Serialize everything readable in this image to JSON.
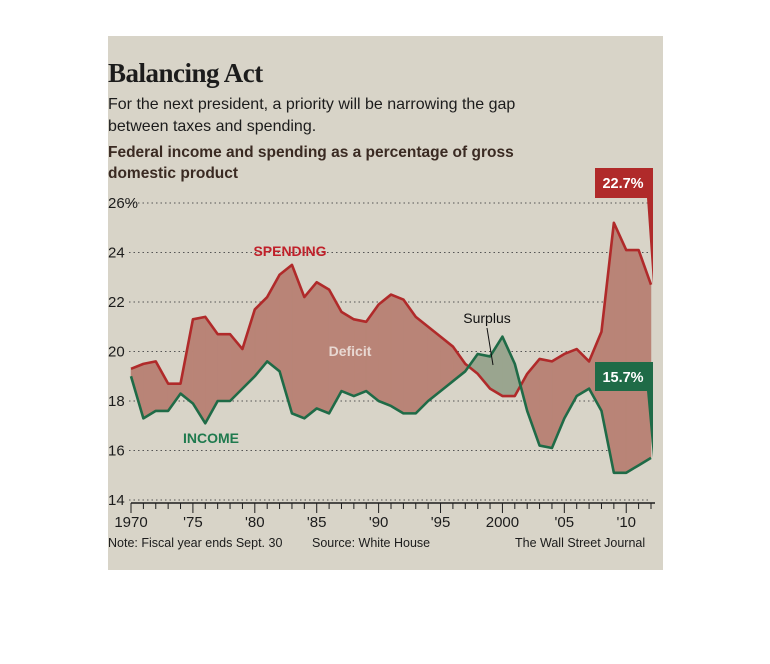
{
  "header": {
    "title": "Balancing Act",
    "subtitle": "For the next president, a priority will be narrowing the gap between taxes and spending.",
    "description": "Federal income and spending as a percentage of gross domestic product"
  },
  "footer": {
    "note": "Note: Fiscal year ends Sept. 30",
    "source": "Source: White House",
    "credit": "The Wall Street Journal"
  },
  "colors": {
    "background": "#d8d4c8",
    "spending": "#b02a2a",
    "income": "#1f6b47",
    "deficit_fill": "#b98477",
    "surplus_fill": "#9aa58f",
    "spending_label": "#c0202a",
    "income_label": "#1f7a4e",
    "deficit_label": "#e8d8d2"
  },
  "chart_data": {
    "type": "line",
    "x": [
      1970,
      1971,
      1972,
      1973,
      1974,
      1975,
      1976,
      1977,
      1978,
      1979,
      1980,
      1981,
      1982,
      1983,
      1984,
      1985,
      1986,
      1987,
      1988,
      1989,
      1990,
      1991,
      1992,
      1993,
      1994,
      1995,
      1996,
      1997,
      1998,
      1999,
      2000,
      2001,
      2002,
      2003,
      2004,
      2005,
      2006,
      2007,
      2008,
      2009,
      2010,
      2011,
      2012
    ],
    "series": [
      {
        "name": "SPENDING",
        "values": [
          19.3,
          19.5,
          19.6,
          18.7,
          18.7,
          21.3,
          21.4,
          20.7,
          20.7,
          20.1,
          21.7,
          22.2,
          23.1,
          23.5,
          22.2,
          22.8,
          22.5,
          21.6,
          21.3,
          21.2,
          21.9,
          22.3,
          22.1,
          21.4,
          21.0,
          20.6,
          20.2,
          19.5,
          19.1,
          18.5,
          18.2,
          18.2,
          19.1,
          19.7,
          19.6,
          19.9,
          20.1,
          19.6,
          20.8,
          25.2,
          24.1,
          24.1,
          22.7
        ]
      },
      {
        "name": "INCOME",
        "values": [
          19.0,
          17.3,
          17.6,
          17.6,
          18.3,
          17.9,
          17.1,
          18.0,
          18.0,
          18.5,
          19.0,
          19.6,
          19.2,
          17.5,
          17.3,
          17.7,
          17.5,
          18.4,
          18.2,
          18.4,
          18.0,
          17.8,
          17.5,
          17.5,
          18.0,
          18.4,
          18.8,
          19.2,
          19.9,
          19.8,
          20.6,
          19.5,
          17.6,
          16.2,
          16.1,
          17.3,
          18.2,
          18.5,
          17.6,
          15.1,
          15.1,
          15.4,
          15.7
        ]
      }
    ],
    "ylim": [
      14,
      26
    ],
    "yticks": [
      "14",
      "16",
      "18",
      "20",
      "22",
      "24",
      "26%"
    ],
    "ytick_values": [
      14,
      16,
      18,
      20,
      22,
      24,
      26
    ],
    "xticks": [
      "1970",
      "'75",
      "'80",
      "'85",
      "'90",
      "'95",
      "2000",
      "'05",
      "'10"
    ],
    "xtick_values": [
      1970,
      1975,
      1980,
      1985,
      1990,
      1995,
      2000,
      2005,
      2010
    ],
    "annotations": {
      "spending": "SPENDING",
      "income": "INCOME",
      "deficit": "Deficit",
      "surplus": "Surplus"
    },
    "end_labels": {
      "spending": "22.7%",
      "income": "15.7%"
    },
    "grid": true
  }
}
